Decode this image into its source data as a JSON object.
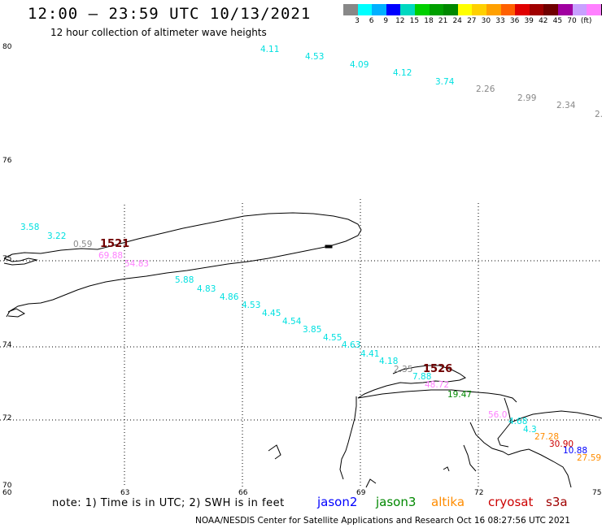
{
  "header": {
    "title": "12:00 – 23:59 UTC 10/13/2021",
    "subtitle": "12 hour collection of altimeter wave heights"
  },
  "colorbar": {
    "colors": [
      "#888888",
      "#00ffff",
      "#00b0ff",
      "#0000ff",
      "#00d8c0",
      "#00d000",
      "#00a000",
      "#008800",
      "#ffff00",
      "#ffd000",
      "#ffa000",
      "#ff6000",
      "#e00000",
      "#a00000",
      "#700000",
      "#a000a0",
      "#c8a0ff",
      "#ff80ff",
      "#000000"
    ],
    "labels": [
      "3",
      "6",
      "9",
      "12",
      "15",
      "18",
      "21",
      "24",
      "27",
      "30",
      "33",
      "36",
      "39",
      "42",
      "45",
      "70",
      "(ft)"
    ]
  },
  "axes": {
    "y_ticks": [
      "80",
      "76",
      "75",
      "74",
      "72",
      "70"
    ],
    "x_ticks": [
      "60",
      "63",
      "66",
      "69",
      "72",
      "75"
    ]
  },
  "wave_labels": [
    {
      "text": "4.11",
      "color": "#00e0e0"
    },
    {
      "text": "4.53",
      "color": "#00e0e0"
    },
    {
      "text": "4.09",
      "color": "#00e0e0"
    },
    {
      "text": "4.12",
      "color": "#00e0e0"
    },
    {
      "text": "3.74",
      "color": "#00e0e0"
    },
    {
      "text": "2.26",
      "color": "#888888"
    },
    {
      "text": "2.99",
      "color": "#888888"
    },
    {
      "text": "2.34",
      "color": "#888888"
    },
    {
      "text": "2.",
      "color": "#888888"
    },
    {
      "text": "3.58",
      "color": "#00e0e0"
    },
    {
      "text": "3.22",
      "color": "#00e0e0"
    },
    {
      "text": "0.59",
      "color": "#888888"
    },
    {
      "text": "1521",
      "color": "#700000"
    },
    {
      "text": "69.88",
      "color": "#ff80ff"
    },
    {
      "text": "54.83",
      "color": "#ff80ff"
    },
    {
      "text": "5.88",
      "color": "#00e0e0"
    },
    {
      "text": "4.83",
      "color": "#00e0e0"
    },
    {
      "text": "4.86",
      "color": "#00e0e0"
    },
    {
      "text": "4.53",
      "color": "#00e0e0"
    },
    {
      "text": "4.45",
      "color": "#00e0e0"
    },
    {
      "text": "4.54",
      "color": "#00e0e0"
    },
    {
      "text": "3.85",
      "color": "#00e0e0"
    },
    {
      "text": "4.55",
      "color": "#00e0e0"
    },
    {
      "text": "4.63",
      "color": "#00e0e0"
    },
    {
      "text": "4.41",
      "color": "#00e0e0"
    },
    {
      "text": "4.18",
      "color": "#00e0e0"
    },
    {
      "text": "2.35",
      "color": "#888888"
    },
    {
      "text": "1526",
      "color": "#700000"
    },
    {
      "text": "7.88",
      "color": "#00e0e0"
    },
    {
      "text": "48.72",
      "color": "#ff80ff"
    },
    {
      "text": "19.47",
      "color": "#008800"
    },
    {
      "text": "56.0",
      "color": "#ff80ff"
    },
    {
      "text": "4.68",
      "color": "#00e0e0"
    },
    {
      "text": "4.3",
      "color": "#00e0e0"
    },
    {
      "text": "27.28",
      "color": "#ff8c00"
    },
    {
      "text": "30.90",
      "color": "#cc0000"
    },
    {
      "text": "10.88",
      "color": "#0000ff"
    },
    {
      "text": "27.59",
      "color": "#ff8c00"
    }
  ],
  "footer": {
    "note": "note: 1) Time is in UTC; 2) SWH is in feet",
    "legend": [
      {
        "name": "jason2",
        "color": "#0000ff"
      },
      {
        "name": "jason3",
        "color": "#008800"
      },
      {
        "name": "altika",
        "color": "#ff8c00"
      },
      {
        "name": "cryosat",
        "color": "#cc0000"
      },
      {
        "name": "s3a",
        "color": "#a00000"
      }
    ],
    "credit": "NOAA/NESDIS Center for Satellite Applications and Research   Oct 16 08:27:56 UTC 2021"
  }
}
